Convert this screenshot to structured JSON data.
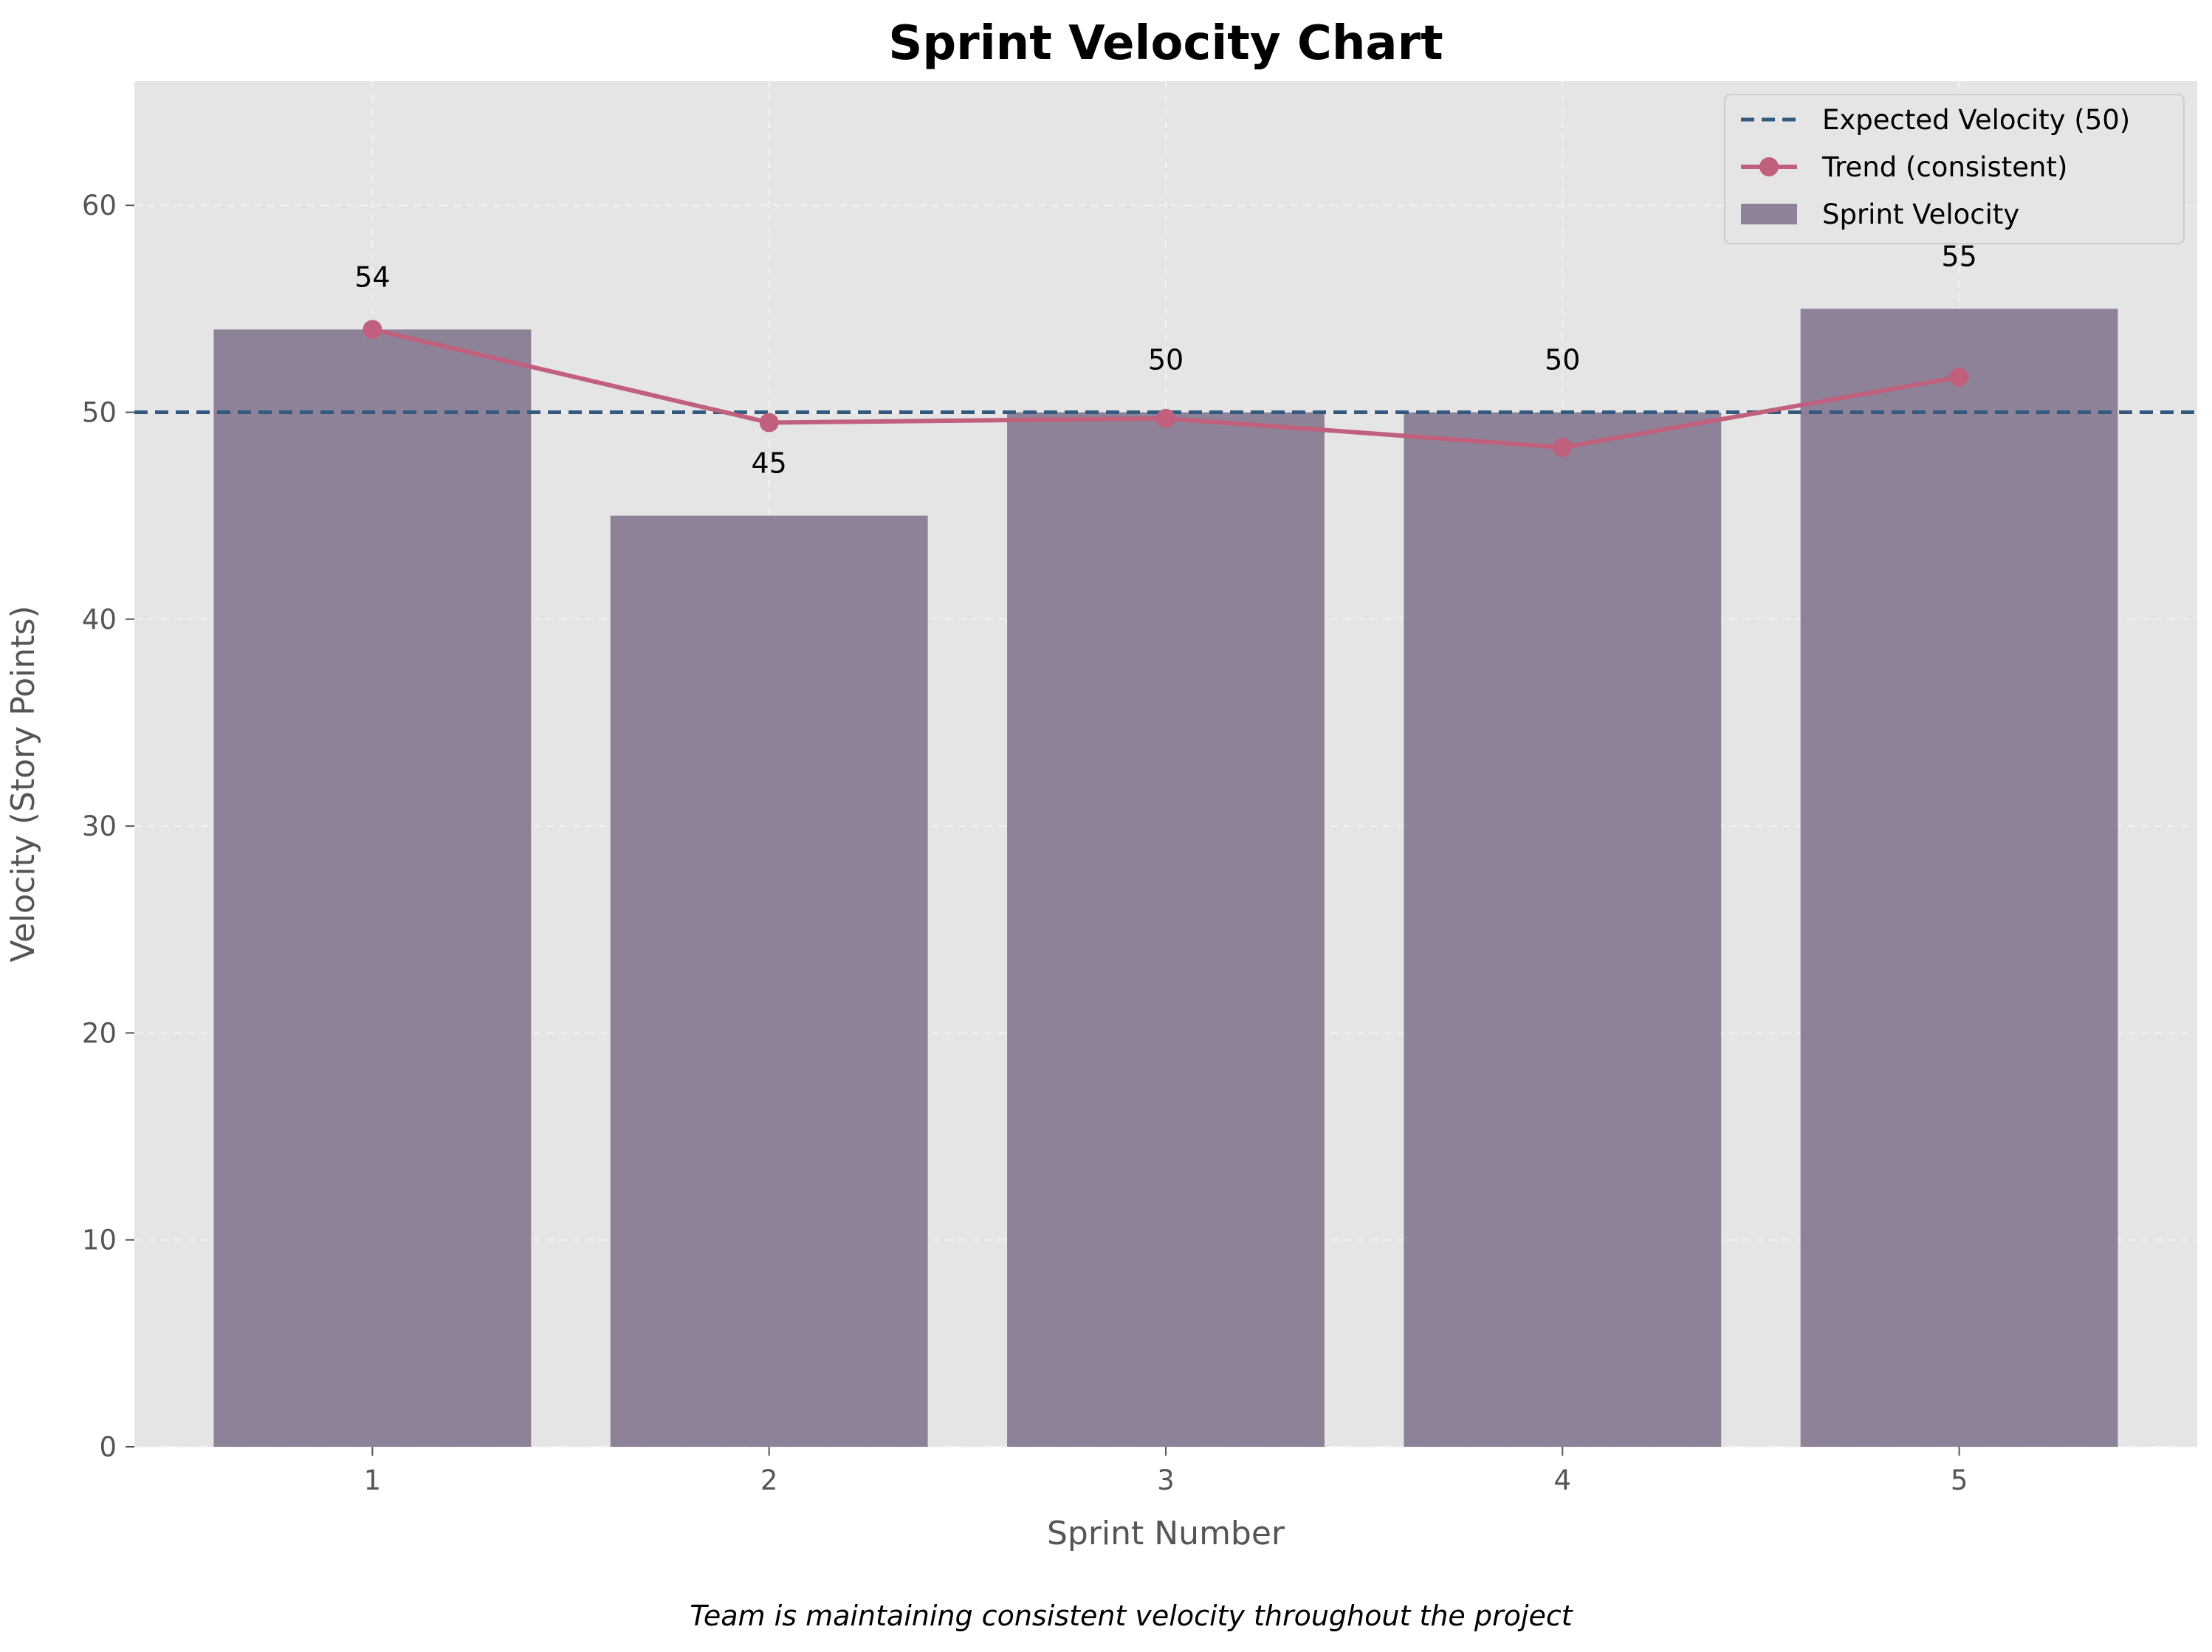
{
  "chart_data": {
    "type": "bar",
    "title": "Sprint Velocity Chart",
    "xlabel": "Sprint Number",
    "ylabel": "Velocity (Story Points)",
    "caption": "Team is maintaining consistent velocity throughout the project",
    "categories": [
      "1",
      "2",
      "3",
      "4",
      "5"
    ],
    "ylim": [
      0,
      66
    ],
    "yticks": [
      0,
      10,
      20,
      30,
      40,
      50,
      60
    ],
    "grid": true,
    "legend_position": "top-right",
    "series": [
      {
        "name": "Sprint Velocity",
        "type": "bar",
        "values": [
          54,
          45,
          50,
          50,
          55
        ],
        "color": "#8e8298"
      },
      {
        "name": "Trend (consistent)",
        "type": "line",
        "values": [
          54.0,
          49.5,
          49.7,
          48.3,
          51.7
        ],
        "color": "#c0607d"
      },
      {
        "name": "Expected Velocity (50)",
        "type": "hline",
        "value": 50,
        "color": "#34597e"
      }
    ],
    "data_labels": [
      "54",
      "45",
      "50",
      "50",
      "55"
    ],
    "colors": {
      "plot_background": "#e5e5e5",
      "grid": "#f2f2f2",
      "tick_text": "#555555",
      "axis_label": "#555555"
    }
  }
}
